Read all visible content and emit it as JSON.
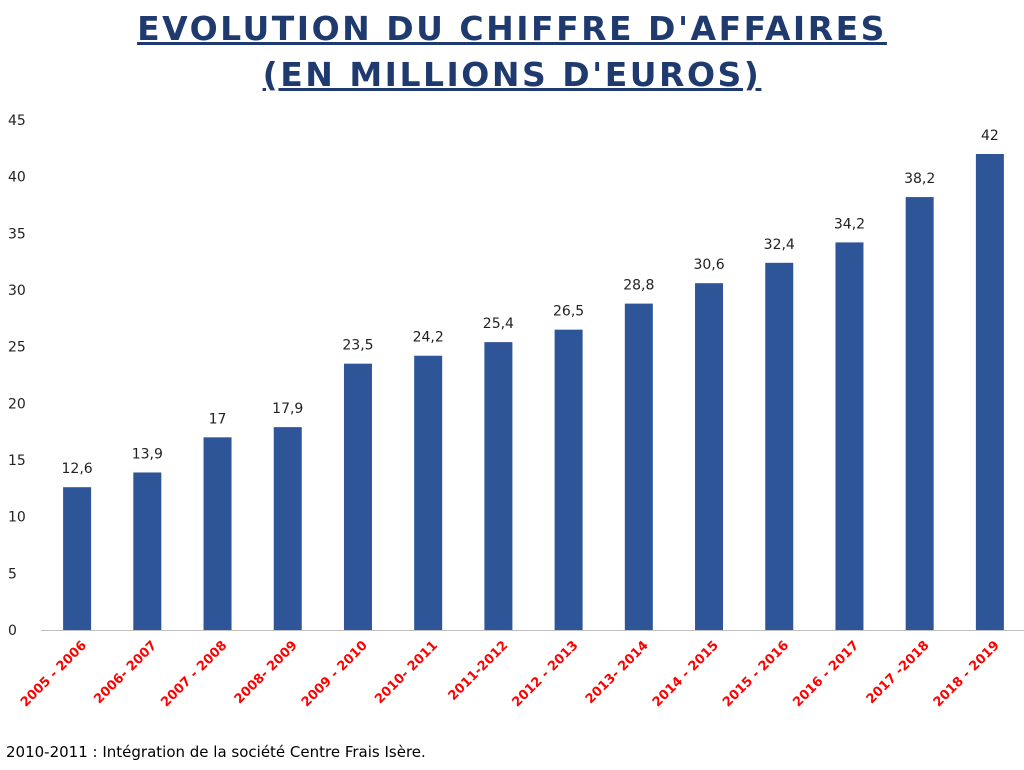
{
  "chart_data": {
    "type": "bar",
    "title_lines": [
      "EVOLUTION DU CHIFFRE D'AFFAIRES",
      "(EN MILLIONS D'EUROS)"
    ],
    "categories": [
      "2005 - 2006",
      "2006- 2007",
      "2007 - 2008",
      "2008- 2009",
      "2009 - 2010",
      "2010- 2011",
      "2011-2012",
      "2012 - 2013",
      "2013- 2014",
      "2014 - 2015",
      "2015 - 2016",
      "2016 - 2017",
      "2017 -2018",
      "2018 - 2019"
    ],
    "values": [
      12.6,
      13.9,
      17,
      17.9,
      23.5,
      24.2,
      25.4,
      26.5,
      28.8,
      30.6,
      32.4,
      34.2,
      38.2,
      42
    ],
    "value_labels": [
      "12,6",
      "13,9",
      "17",
      "17,9",
      "23,5",
      "24,2",
      "25,4",
      "26,5",
      "28,8",
      "30,6",
      "32,4",
      "34,2",
      "38,2",
      "42"
    ],
    "ylim": [
      0,
      45
    ],
    "yticks": [
      0,
      5,
      10,
      15,
      20,
      25,
      30,
      35,
      40,
      45
    ],
    "grid": false,
    "bar_color": "#2e5597",
    "category_label_color": "#ff0000",
    "title_color": "#1f3a6e"
  },
  "footnote": "2010-2011 : Intégration de la société Centre Frais Isère."
}
